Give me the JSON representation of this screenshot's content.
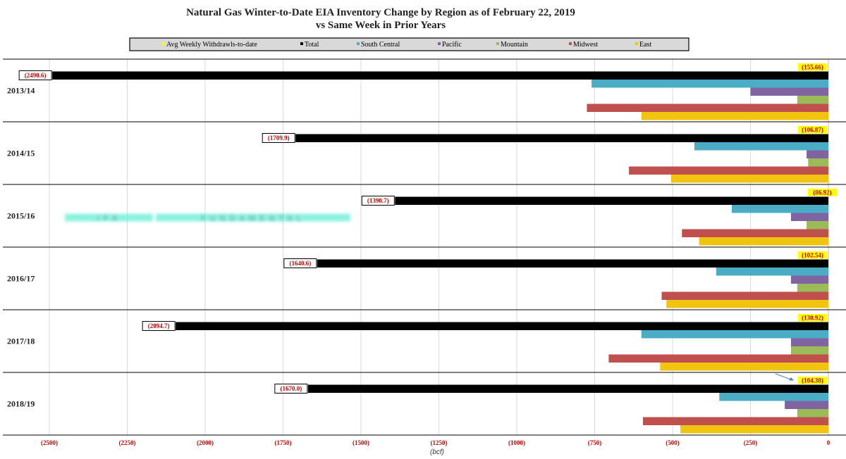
{
  "chart_data": {
    "type": "bar",
    "orientation": "horizontal",
    "title": "Natural Gas Winter-to-Date EIA Inventory Change by Region as of February 22, 2019",
    "subtitle": "vs Same Week in Prior Years",
    "xlabel": "(bcf)",
    "xlim": [
      -2500,
      0
    ],
    "x_ticks": [
      -2500,
      -2250,
      -2000,
      -1750,
      -1500,
      -1250,
      -1000,
      -750,
      -500,
      -250,
      0
    ],
    "x_tick_labels": [
      "(2500)",
      "(2250)",
      "(2000)",
      "(1750)",
      "(1500)",
      "(1250)",
      "(1000)",
      "(750)",
      "(500)",
      "(250)",
      "0"
    ],
    "categories": [
      "2013/14",
      "2014/15",
      "2015/16",
      "2016/17",
      "2017/18",
      "2018/19"
    ],
    "legend_position": "top",
    "legend": [
      "Avg Weekly Withdrawls-to-date",
      "Total",
      "South Central",
      "Pacific",
      "Mountain",
      "Midwest",
      "East"
    ],
    "grid": true,
    "series": [
      {
        "name": "Avg Weekly Withdrawls-to-date",
        "color": "#ffff00",
        "values": [
          -155.66,
          -106.87,
          -86.92,
          -102.54,
          -130.92,
          -104.38
        ],
        "labels": [
          "(155.66)",
          "(106.87)",
          "(86.92)",
          "(102.54)",
          "(130.92)",
          "(104.38)"
        ]
      },
      {
        "name": "Total",
        "color": "#000000",
        "values": [
          -2490.6,
          -1709.9,
          -1390.7,
          -1640.6,
          -2094.7,
          -1670.0
        ],
        "labels": [
          "(2490.6)",
          "(1709.9)",
          "(1390.7)",
          "(1640.6)",
          "(2094.7)",
          "(1670.0)"
        ]
      },
      {
        "name": "South Central",
        "color": "#4bacc6",
        "values": [
          -760,
          -430,
          -310,
          -360,
          -600,
          -350
        ]
      },
      {
        "name": "Pacific",
        "color": "#8064a2",
        "values": [
          -250,
          -70,
          -120,
          -120,
          -120,
          -140
        ]
      },
      {
        "name": "Mountain",
        "color": "#9bbb59",
        "values": [
          -100,
          -65,
          -70,
          -100,
          -120,
          -100
        ]
      },
      {
        "name": "Midwest",
        "color": "#c0504d",
        "values": [
          -775,
          -640,
          -470,
          -535,
          -705,
          -595
        ]
      },
      {
        "name": "East",
        "color": "#f1c40f",
        "values": [
          -600,
          -505,
          -415,
          -520,
          -540,
          -475
        ]
      }
    ],
    "watermark": "IFA FUNDAMENTAL"
  }
}
